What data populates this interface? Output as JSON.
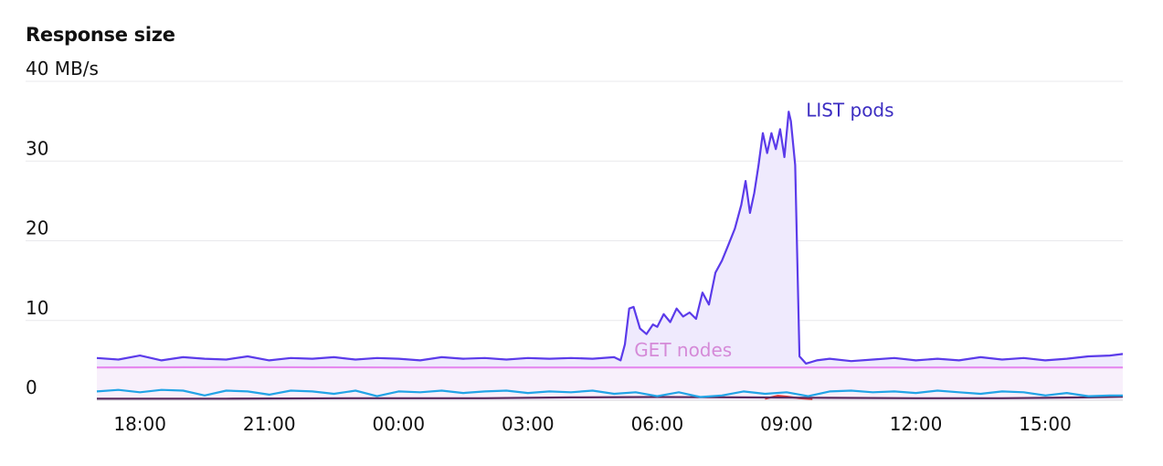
{
  "title": "Response size",
  "chart_data": {
    "type": "line",
    "title": "Response size",
    "unit": "MB/s",
    "ylim": [
      0,
      40
    ],
    "y_ticks": [
      "40 MB/s",
      "30",
      "20",
      "10",
      "0"
    ],
    "y_tick_values": [
      40,
      30,
      20,
      10,
      0
    ],
    "x_ticks": [
      "18:00",
      "21:00",
      "00:00",
      "03:00",
      "06:00",
      "09:00",
      "12:00",
      "15:00"
    ],
    "x_tick_values": [
      18,
      21,
      24,
      27,
      30,
      33,
      36,
      39
    ],
    "xlim": [
      17.0,
      40.8
    ],
    "grid": true,
    "series": [
      {
        "name": "LIST pods",
        "color": "#5b3bea",
        "fill": "#efeafd",
        "label_color": "#3d2ec2",
        "x": [
          17.0,
          17.5,
          18.0,
          18.5,
          19.0,
          19.5,
          20.0,
          20.5,
          21.0,
          21.5,
          22.0,
          22.5,
          23.0,
          23.5,
          24.0,
          24.5,
          25.0,
          25.5,
          26.0,
          26.5,
          27.0,
          27.5,
          28.0,
          28.5,
          29.0,
          29.15,
          29.25,
          29.35,
          29.45,
          29.6,
          29.75,
          29.9,
          30.0,
          30.15,
          30.3,
          30.45,
          30.6,
          30.75,
          30.9,
          31.05,
          31.2,
          31.35,
          31.5,
          31.65,
          31.8,
          31.95,
          32.05,
          32.15,
          32.25,
          32.35,
          32.45,
          32.55,
          32.65,
          32.75,
          32.85,
          32.95,
          33.05,
          33.1,
          33.2,
          33.3,
          33.45,
          33.7,
          34.0,
          34.5,
          35.0,
          35.5,
          36.0,
          36.5,
          37.0,
          37.5,
          38.0,
          38.5,
          39.0,
          39.5,
          40.0,
          40.5,
          40.8
        ],
        "values": [
          5.3,
          5.1,
          5.6,
          5.0,
          5.4,
          5.2,
          5.1,
          5.5,
          5.0,
          5.3,
          5.2,
          5.4,
          5.1,
          5.3,
          5.2,
          5.0,
          5.4,
          5.2,
          5.3,
          5.1,
          5.3,
          5.2,
          5.3,
          5.2,
          5.4,
          5.0,
          7.0,
          11.5,
          11.7,
          9.0,
          8.3,
          9.5,
          9.2,
          10.8,
          9.8,
          11.5,
          10.5,
          11.0,
          10.2,
          13.5,
          12.0,
          16.0,
          17.5,
          19.5,
          21.5,
          24.5,
          27.5,
          23.5,
          26.0,
          29.5,
          33.5,
          31.0,
          33.5,
          31.5,
          34.0,
          30.5,
          36.2,
          35.0,
          29.5,
          5.5,
          4.6,
          5.0,
          5.2,
          4.9,
          5.1,
          5.3,
          5.0,
          5.2,
          5.0,
          5.4,
          5.1,
          5.3,
          5.0,
          5.2,
          5.5,
          5.6,
          5.8
        ]
      },
      {
        "name": "GET nodes",
        "color": "#e589ef",
        "fill": "#f8f0fb",
        "label_color": "#d58ad8",
        "x": [
          17.0,
          20.0,
          24.0,
          28.0,
          32.0,
          36.0,
          40.0,
          40.8
        ],
        "values": [
          4.1,
          4.15,
          4.1,
          4.1,
          4.1,
          4.1,
          4.1,
          4.1
        ]
      },
      {
        "color": "#22a4e6",
        "x": [
          17.0,
          17.5,
          18.0,
          18.5,
          19.0,
          19.5,
          20.0,
          20.5,
          21.0,
          21.5,
          22.0,
          22.5,
          23.0,
          23.5,
          24.0,
          24.5,
          25.0,
          25.5,
          26.0,
          26.5,
          27.0,
          27.5,
          28.0,
          28.5,
          29.0,
          29.5,
          30.0,
          30.5,
          31.0,
          31.5,
          32.0,
          32.5,
          33.0,
          33.5,
          34.0,
          34.5,
          35.0,
          35.5,
          36.0,
          36.5,
          37.0,
          37.5,
          38.0,
          38.5,
          39.0,
          39.5,
          40.0,
          40.5,
          40.8
        ],
        "values": [
          1.1,
          1.3,
          1.0,
          1.3,
          1.2,
          0.6,
          1.2,
          1.1,
          0.7,
          1.2,
          1.1,
          0.8,
          1.2,
          0.5,
          1.1,
          1.0,
          1.2,
          0.9,
          1.1,
          1.2,
          0.9,
          1.1,
          1.0,
          1.2,
          0.8,
          1.0,
          0.5,
          1.0,
          0.4,
          0.6,
          1.1,
          0.8,
          1.0,
          0.5,
          1.1,
          1.2,
          1.0,
          1.1,
          0.9,
          1.2,
          1.0,
          0.8,
          1.1,
          1.0,
          0.6,
          0.9,
          0.5,
          0.6,
          0.6
        ]
      },
      {
        "color": "#5a2a5e",
        "x": [
          17.0,
          20.0,
          23.0,
          26.0,
          28.0,
          30.0,
          32.0,
          34.0,
          36.0,
          38.0,
          40.0,
          40.8
        ],
        "values": [
          0.2,
          0.2,
          0.25,
          0.25,
          0.35,
          0.4,
          0.35,
          0.3,
          0.25,
          0.25,
          0.35,
          0.45
        ]
      },
      {
        "color": "#e0332e",
        "x": [
          32.5,
          32.8,
          33.0,
          33.3,
          33.6
        ],
        "values": [
          0.2,
          0.55,
          0.45,
          0.25,
          0.15
        ]
      }
    ],
    "annotations": [
      {
        "text": "LIST pods",
        "series": 0
      },
      {
        "text": "GET nodes",
        "series": 1
      }
    ]
  }
}
